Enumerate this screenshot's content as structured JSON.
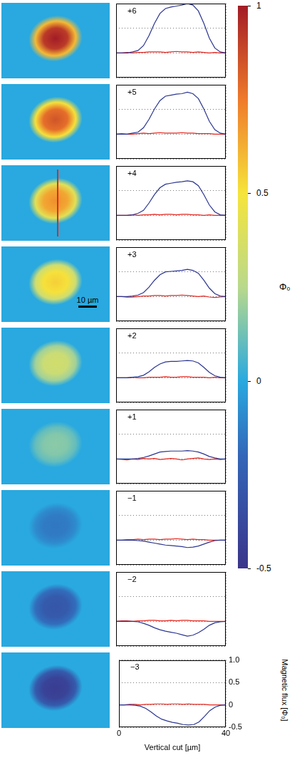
{
  "chart_data": [
    {
      "type": "line",
      "annotation": "+6",
      "xlim": [
        0,
        40
      ],
      "xticks": [
        0,
        40
      ],
      "ylim": [
        -0.5,
        1
      ],
      "yticks": [
        -0.5,
        0,
        0.5,
        {
          "value": 1,
          "label": "1.0"
        }
      ],
      "grid": true,
      "tick_labels": false,
      "x": [
        0,
        2,
        4,
        6,
        8,
        10,
        12,
        14,
        16,
        18,
        20,
        22,
        24,
        26,
        28,
        30,
        32,
        34,
        36,
        38,
        40
      ],
      "series": [
        {
          "color": "#2b3590",
          "values": [
            0,
            0,
            0,
            0.02,
            0.05,
            0.15,
            0.35,
            0.6,
            0.8,
            0.9,
            0.93,
            0.95,
            0.97,
            1.0,
            0.97,
            0.85,
            0.6,
            0.3,
            0.1,
            0.02,
            0
          ]
        },
        {
          "color": "#e3261f",
          "values": [
            0,
            0,
            0.01,
            0,
            0.01,
            0.01,
            0.02,
            0.02,
            0.02,
            0.01,
            0.02,
            0.03,
            0.02,
            0.02,
            0.01,
            0.02,
            0.01,
            0,
            0.01,
            0,
            0
          ]
        }
      ]
    },
    {
      "type": "line",
      "annotation": "+5",
      "xlim": [
        0,
        40
      ],
      "xticks": [
        0,
        40
      ],
      "ylim": [
        -0.5,
        1
      ],
      "yticks": [
        -0.5,
        0,
        0.5,
        {
          "value": 1,
          "label": "1.0"
        }
      ],
      "grid": true,
      "tick_labels": false,
      "x": [
        0,
        2,
        4,
        6,
        8,
        10,
        12,
        14,
        16,
        18,
        20,
        22,
        24,
        26,
        28,
        30,
        32,
        34,
        36,
        38,
        40
      ],
      "series": [
        {
          "color": "#2b3590",
          "values": [
            0,
            0,
            0,
            0.02,
            0.04,
            0.13,
            0.3,
            0.51,
            0.68,
            0.77,
            0.79,
            0.81,
            0.82,
            0.85,
            0.82,
            0.72,
            0.51,
            0.26,
            0.09,
            0.02,
            0
          ]
        },
        {
          "color": "#e3261f",
          "values": [
            0,
            0.01,
            0,
            0,
            0.01,
            0.02,
            0.01,
            0.02,
            0.03,
            0.02,
            0.02,
            0.02,
            0.03,
            0.02,
            0.02,
            0.01,
            0.01,
            0.01,
            0,
            0,
            0
          ]
        }
      ]
    },
    {
      "type": "line",
      "annotation": "+4",
      "xlim": [
        0,
        40
      ],
      "xticks": [
        0,
        40
      ],
      "ylim": [
        -0.5,
        1
      ],
      "yticks": [
        -0.5,
        0,
        0.5,
        {
          "value": 1,
          "label": "1.0"
        }
      ],
      "grid": true,
      "tick_labels": false,
      "x": [
        0,
        2,
        4,
        6,
        8,
        10,
        12,
        14,
        16,
        18,
        20,
        22,
        24,
        26,
        28,
        30,
        32,
        34,
        36,
        38,
        40
      ],
      "series": [
        {
          "color": "#2b3590",
          "values": [
            0,
            0,
            0,
            0.01,
            0.04,
            0.1,
            0.25,
            0.42,
            0.56,
            0.63,
            0.65,
            0.67,
            0.68,
            0.7,
            0.68,
            0.6,
            0.42,
            0.21,
            0.07,
            0.01,
            0
          ]
        },
        {
          "color": "#e3261f",
          "values": [
            0,
            0,
            0,
            0.01,
            0,
            0.01,
            0.01,
            0.02,
            0.01,
            0.02,
            0.02,
            0.01,
            0.02,
            0.02,
            0.01,
            0.01,
            0,
            0.01,
            0,
            0,
            0
          ]
        }
      ]
    },
    {
      "type": "line",
      "annotation": "+3",
      "xlim": [
        0,
        40
      ],
      "xticks": [
        0,
        40
      ],
      "ylim": [
        -0.5,
        1
      ],
      "yticks": [
        -0.5,
        0,
        0.5,
        {
          "value": 1,
          "label": "1.0"
        }
      ],
      "grid": true,
      "tick_labels": false,
      "x": [
        0,
        2,
        4,
        6,
        8,
        10,
        12,
        14,
        16,
        18,
        20,
        22,
        24,
        26,
        28,
        30,
        32,
        34,
        36,
        38,
        40
      ],
      "series": [
        {
          "color": "#2b3590",
          "values": [
            0,
            0,
            0,
            0.01,
            0.03,
            0.08,
            0.19,
            0.33,
            0.44,
            0.5,
            0.51,
            0.52,
            0.53,
            0.55,
            0.53,
            0.47,
            0.33,
            0.17,
            0.06,
            0.01,
            0
          ]
        },
        {
          "color": "#e3261f",
          "values": [
            0,
            0,
            -0.01,
            -0.01,
            0,
            0.01,
            0.01,
            0.02,
            0.02,
            0.01,
            0.02,
            0.02,
            0.03,
            0.02,
            0.01,
            0,
            0.01,
            -0.01,
            -0.02,
            -0.01,
            0
          ]
        }
      ]
    },
    {
      "type": "line",
      "annotation": "+2",
      "xlim": [
        0,
        40
      ],
      "xticks": [
        0,
        40
      ],
      "ylim": [
        -0.5,
        1
      ],
      "yticks": [
        -0.5,
        0,
        0.5,
        {
          "value": 1,
          "label": "1.0"
        }
      ],
      "grid": true,
      "tick_labels": false,
      "x": [
        0,
        2,
        4,
        6,
        8,
        10,
        12,
        14,
        16,
        18,
        20,
        22,
        24,
        26,
        28,
        30,
        32,
        34,
        36,
        38,
        40
      ],
      "series": [
        {
          "color": "#2b3590",
          "values": [
            0,
            0,
            0,
            0.01,
            0.02,
            0.05,
            0.12,
            0.21,
            0.28,
            0.32,
            0.33,
            0.33,
            0.34,
            0.35,
            0.34,
            0.3,
            0.21,
            0.11,
            0.04,
            0.01,
            0
          ]
        },
        {
          "color": "#e3261f",
          "values": [
            0,
            0,
            0,
            0.01,
            0,
            0,
            0.01,
            0.01,
            0.01,
            0.02,
            0.01,
            0.01,
            0.02,
            0.02,
            0.01,
            0.01,
            0.01,
            0,
            0.01,
            0,
            0
          ]
        }
      ]
    },
    {
      "type": "line",
      "annotation": "+1",
      "xlim": [
        0,
        40
      ],
      "xticks": [
        0,
        40
      ],
      "ylim": [
        -0.5,
        1
      ],
      "yticks": [
        -0.5,
        0,
        0.5,
        {
          "value": 1,
          "label": "1.0"
        }
      ],
      "grid": true,
      "tick_labels": false,
      "x": [
        0,
        2,
        4,
        6,
        8,
        10,
        12,
        14,
        16,
        18,
        20,
        22,
        24,
        26,
        28,
        30,
        32,
        34,
        36,
        38,
        40
      ],
      "series": [
        {
          "color": "#2b3590",
          "values": [
            0,
            0,
            0,
            0,
            0.01,
            0.03,
            0.06,
            0.1,
            0.14,
            0.15,
            0.16,
            0.16,
            0.16,
            0.17,
            0.16,
            0.14,
            0.1,
            0.05,
            0.02,
            0,
            0
          ]
        },
        {
          "color": "#e3261f",
          "values": [
            0,
            -0.01,
            -0.02,
            0,
            -0.01,
            0.01,
            0,
            0.01,
            -0.01,
            0,
            0.01,
            0,
            -0.02,
            0,
            0.01,
            0.02,
            0,
            -0.01,
            0,
            -0.01,
            0
          ]
        }
      ]
    },
    {
      "type": "line",
      "annotation": "−1",
      "xlim": [
        0,
        40
      ],
      "xticks": [
        0,
        40
      ],
      "ylim": [
        -0.5,
        1
      ],
      "yticks": [
        -0.5,
        0,
        0.5,
        {
          "value": 1,
          "label": "1.0"
        }
      ],
      "grid": true,
      "tick_labels": false,
      "x": [
        0,
        2,
        4,
        6,
        8,
        10,
        12,
        14,
        16,
        18,
        20,
        22,
        24,
        26,
        28,
        30,
        32,
        34,
        36,
        38,
        40
      ],
      "series": [
        {
          "color": "#2b3590",
          "values": [
            0,
            0,
            0,
            0,
            -0.01,
            -0.02,
            -0.04,
            -0.06,
            -0.08,
            -0.1,
            -0.11,
            -0.12,
            -0.13,
            -0.15,
            -0.14,
            -0.12,
            -0.08,
            -0.04,
            -0.01,
            0,
            0
          ]
        },
        {
          "color": "#e3261f",
          "values": [
            0,
            0,
            0.01,
            0.01,
            0.02,
            0.01,
            0.02,
            0.02,
            0.01,
            0.02,
            0.02,
            0.03,
            0.02,
            0.01,
            0.02,
            0.01,
            0.01,
            0,
            0,
            0,
            0
          ]
        }
      ]
    },
    {
      "type": "line",
      "annotation": "−2",
      "xlim": [
        0,
        40
      ],
      "xticks": [
        0,
        40
      ],
      "ylim": [
        -0.5,
        1
      ],
      "yticks": [
        -0.5,
        0,
        0.5,
        {
          "value": 1,
          "label": "1.0"
        }
      ],
      "grid": true,
      "tick_labels": false,
      "x": [
        0,
        2,
        4,
        6,
        8,
        10,
        12,
        14,
        16,
        18,
        20,
        22,
        24,
        26,
        28,
        30,
        32,
        34,
        36,
        38,
        40
      ],
      "series": [
        {
          "color": "#2b3590",
          "values": [
            0,
            0,
            0,
            0,
            -0.01,
            -0.04,
            -0.08,
            -0.13,
            -0.17,
            -0.2,
            -0.22,
            -0.24,
            -0.27,
            -0.3,
            -0.28,
            -0.23,
            -0.16,
            -0.08,
            -0.03,
            -0.01,
            0
          ]
        },
        {
          "color": "#e3261f",
          "values": [
            0,
            0.01,
            0.01,
            0,
            0.01,
            0.01,
            0.02,
            0.02,
            0.01,
            0.01,
            0.02,
            0.01,
            0.02,
            0.02,
            0.01,
            0.01,
            0.01,
            0,
            0,
            0,
            0
          ]
        }
      ]
    },
    {
      "type": "line",
      "annotation": "−3",
      "xlim": [
        0,
        40
      ],
      "xticks": [
        0,
        40
      ],
      "ylim": [
        -0.5,
        1
      ],
      "yticks": [
        -0.5,
        0,
        0.5,
        {
          "value": 1,
          "label": "1.0"
        }
      ],
      "grid": true,
      "xlabel": "Vertical cut [µm]",
      "ylabel": "Magnetic flux [Φ₀]",
      "x": [
        0,
        2,
        4,
        6,
        8,
        10,
        12,
        14,
        16,
        18,
        20,
        22,
        24,
        26,
        28,
        30,
        32,
        34,
        36,
        38,
        40
      ],
      "series": [
        {
          "color": "#2b3590",
          "values": [
            0,
            0,
            0,
            -0.01,
            -0.03,
            -0.08,
            -0.16,
            -0.25,
            -0.32,
            -0.36,
            -0.39,
            -0.41,
            -0.44,
            -0.45,
            -0.44,
            -0.38,
            -0.26,
            -0.13,
            -0.05,
            -0.01,
            0
          ]
        },
        {
          "color": "#e3261f",
          "values": [
            0,
            0,
            0.01,
            0.01,
            0,
            0.01,
            0.01,
            0.02,
            0.02,
            0.01,
            0.02,
            0.02,
            0.01,
            0.02,
            0.01,
            0.01,
            0.01,
            0,
            0,
            0,
            0
          ]
        }
      ]
    }
  ],
  "colorbar": {
    "label": "Φ₀",
    "range": [
      -0.5,
      1
    ],
    "ticks": [
      -0.5,
      0,
      0.5,
      1
    ]
  },
  "scale_bar": {
    "value": 10,
    "label": "10 µm"
  }
}
